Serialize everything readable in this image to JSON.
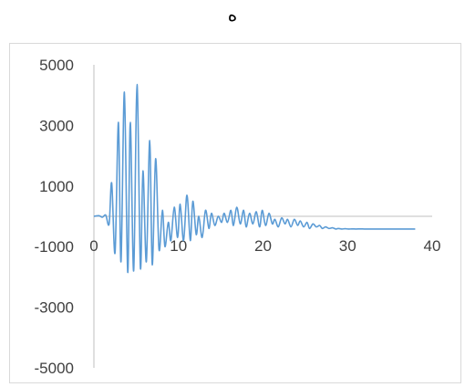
{
  "chart_data": {
    "type": "line",
    "title": "ه",
    "xlabel": "",
    "ylabel": "",
    "xlim": [
      0,
      40
    ],
    "ylim": [
      -5000,
      5000
    ],
    "x_ticks": [
      "0",
      "10",
      "20",
      "30",
      "40"
    ],
    "y_ticks": [
      "5000",
      "3000",
      "1000",
      "-1000",
      "-3000",
      "-5000"
    ],
    "grid": false,
    "legend": "none",
    "line_color": "#5b9bd5",
    "axis_color": "#bfbfbf",
    "series": [
      {
        "x": [
          0,
          0.6,
          1.0,
          1.4,
          1.8,
          2.1,
          2.5,
          2.9,
          3.2,
          3.6,
          4.0,
          4.3,
          4.7,
          5.1,
          5.5,
          5.8,
          6.2,
          6.6,
          6.9,
          7.3,
          7.7,
          8.1,
          8.4,
          8.8,
          9.1,
          9.5,
          9.9,
          10.2,
          10.6,
          11.0,
          11.4,
          11.7,
          12.1,
          12.4,
          12.8,
          13.2,
          13.6,
          13.9,
          14.3,
          14.7,
          15.1,
          15.4,
          15.8,
          16.2,
          16.5,
          16.9,
          17.3,
          17.7,
          18.0,
          18.4,
          18.8,
          19.2,
          19.6,
          19.9,
          20.3,
          20.7,
          21.1,
          21.4,
          21.8,
          22.2,
          22.6,
          22.9,
          23.3,
          23.7,
          24.1,
          24.4,
          24.8,
          25.2,
          25.5,
          25.9,
          26.3,
          26.7,
          27.0,
          27.4,
          27.8,
          28.2,
          28.6,
          28.9,
          29.3,
          29.7,
          30.1,
          30.5,
          31.0,
          31.5,
          32.0,
          32.5,
          33.0,
          34.0,
          35.0,
          36.0,
          37.0,
          38.0
        ],
        "y": [
          0,
          20,
          -30,
          40,
          -250,
          1100,
          -1200,
          3100,
          -1500,
          4100,
          -1850,
          3100,
          -1800,
          4350,
          -1700,
          1500,
          -1500,
          2500,
          -1600,
          1900,
          -1100,
          200,
          -1000,
          -200,
          -800,
          300,
          -700,
          400,
          -800,
          700,
          -800,
          500,
          -600,
          0,
          -700,
          200,
          -400,
          100,
          -300,
          0,
          -200,
          100,
          -200,
          200,
          -300,
          300,
          -250,
          200,
          -350,
          100,
          -250,
          150,
          -350,
          200,
          -300,
          100,
          -250,
          -100,
          -350,
          -50,
          -250,
          -100,
          -350,
          -100,
          -300,
          -150,
          -350,
          -200,
          -400,
          -250,
          -350,
          -300,
          -400,
          -350,
          -400,
          -380,
          -420,
          -400,
          -420,
          -410,
          -420,
          -415,
          -420,
          -415,
          -420,
          -420,
          -420,
          -420,
          -420,
          -420,
          -420,
          -420
        ]
      }
    ]
  }
}
